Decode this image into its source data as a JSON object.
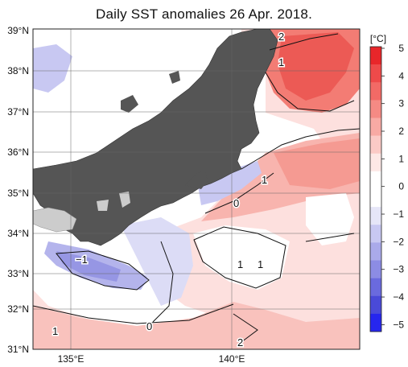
{
  "title": "Daily SST anomalies 26 Apr. 2018.",
  "lat_labels": [
    "39°N",
    "38°N",
    "37°N",
    "36°N",
    "35°N",
    "34°N",
    "33°N",
    "32°N",
    "31°N"
  ],
  "lon_labels": [
    "135°E",
    "140°E"
  ],
  "contour_labels": {
    "c_n2": "2",
    "c_n1": "1",
    "c_e1": "1",
    "c_0": "0",
    "c_m1": "−1",
    "c_s1a": "1",
    "c_s1b": "1",
    "c_w1": "1",
    "c_s0": "0",
    "c_s2": "2"
  },
  "colorbar": {
    "unit": "[°C]",
    "ticks": [
      "5",
      "4",
      "3",
      "2",
      "1",
      "0",
      "−1",
      "−2",
      "−3",
      "−4",
      "−5"
    ],
    "colors": [
      "#e8262a",
      "#ee4a4a",
      "#f26a66",
      "#f58a84",
      "#f8aaa4",
      "#fbcac6",
      "#fde8e6",
      "#ffffff",
      "#ffffff",
      "#e6e6f8",
      "#c8c8f2",
      "#aaaaea",
      "#8c8ce4",
      "#6a6ade",
      "#4a4ad8",
      "#2626ee"
    ]
  },
  "colors": {
    "land": "#555555",
    "frame": "#222222",
    "ocean_base": "#fde0de"
  }
}
